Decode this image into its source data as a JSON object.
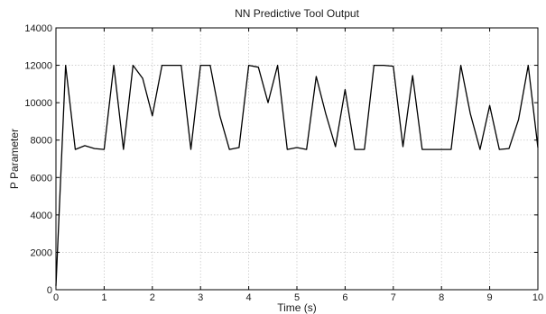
{
  "chart_data": {
    "type": "line",
    "title": "NN Predictive Tool Output",
    "xlabel": "Time (s)",
    "ylabel": "P Parameter",
    "xlim": [
      0,
      10
    ],
    "ylim": [
      0,
      14000
    ],
    "xticks": [
      0,
      1,
      2,
      3,
      4,
      5,
      6,
      7,
      8,
      9,
      10
    ],
    "yticks": [
      0,
      2000,
      4000,
      6000,
      8000,
      10000,
      12000,
      14000
    ],
    "grid": true,
    "line_color": "#000000",
    "series": [
      {
        "x": [
          0,
          0.2,
          0.4,
          0.6,
          0.8,
          1.0,
          1.2,
          1.4,
          1.6,
          1.8,
          2.0,
          2.2,
          2.4,
          2.6,
          2.8,
          3.0,
          3.2,
          3.4,
          3.6,
          3.8,
          4.0,
          4.2,
          4.4,
          4.6,
          4.8,
          5.0,
          5.2,
          5.4,
          5.6,
          5.8,
          6.0,
          6.2,
          6.4,
          6.6,
          6.8,
          7.0,
          7.2,
          7.4,
          7.6,
          7.8,
          8.0,
          8.2,
          8.4,
          8.6,
          8.8,
          9.0,
          9.2,
          9.4,
          9.6,
          9.8,
          10.0
        ],
        "values": [
          200,
          12000,
          7500,
          7700,
          7550,
          7500,
          12000,
          7500,
          12000,
          11300,
          9300,
          12000,
          12000,
          12000,
          7500,
          12000,
          12000,
          9300,
          7500,
          7600,
          12000,
          11900,
          10000,
          12000,
          7500,
          7600,
          7500,
          11400,
          9400,
          7650,
          10700,
          7500,
          7500,
          12000,
          12000,
          11950,
          7650,
          11450,
          7500,
          7500,
          7500,
          7500,
          12000,
          9400,
          7500,
          9850,
          7500,
          7550,
          9100,
          12000,
          7600
        ]
      }
    ]
  }
}
